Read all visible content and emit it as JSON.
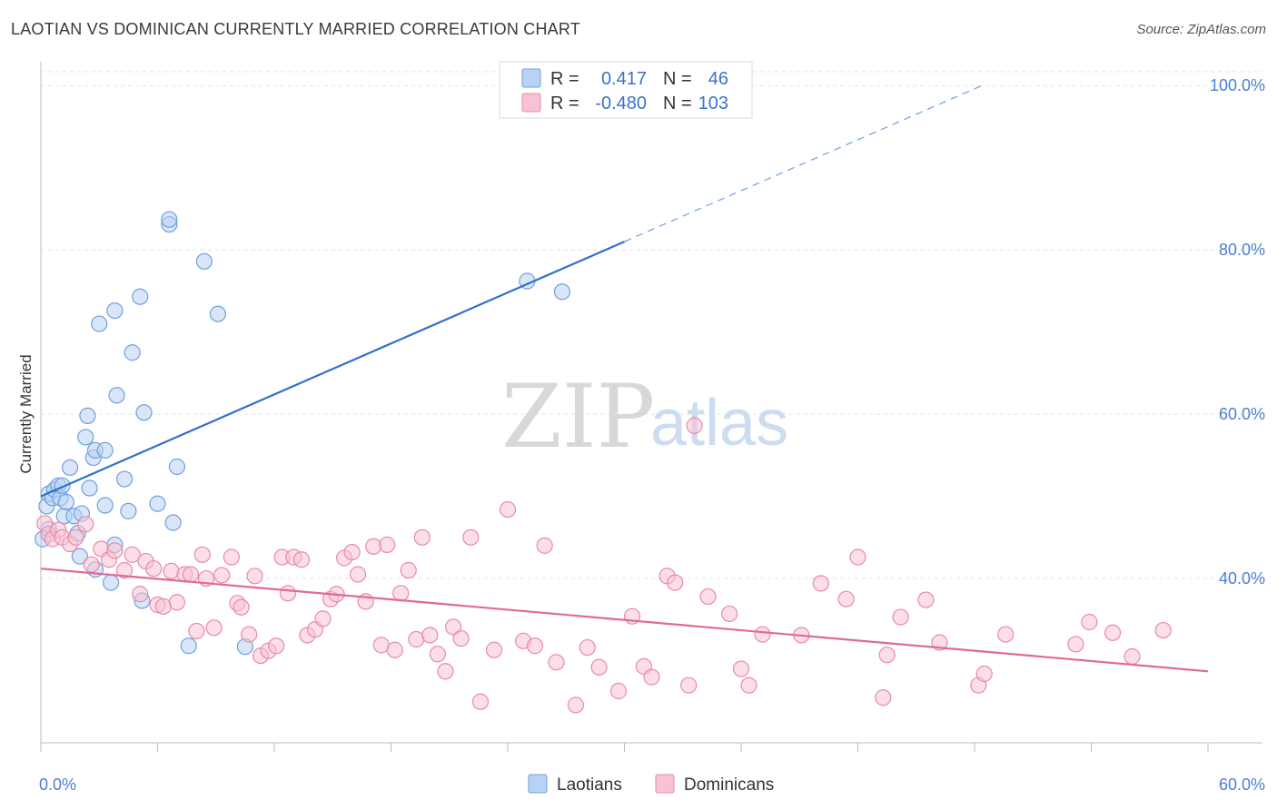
{
  "title": "LAOTIAN VS DOMINICAN CURRENTLY MARRIED CORRELATION CHART",
  "source": "Source: ZipAtlas.com",
  "watermark": {
    "part1": "ZIP",
    "part2": "atlas"
  },
  "legend": {
    "rows": [
      {
        "r_label": "R =",
        "r_value": "0.417",
        "n_label": "N =",
        "n_value": "46",
        "color": "#6fa0e0",
        "fill": "#b9d2f3"
      },
      {
        "r_label": "R =",
        "r_value": "-0.480",
        "n_label": "N =",
        "n_value": "103",
        "color": "#e98aa9",
        "fill": "#f7c3d3"
      }
    ]
  },
  "bottom_legend": [
    "Laotians",
    "Dominicans"
  ],
  "chart_data": {
    "type": "scatter",
    "title": "LAOTIAN VS DOMINICAN CURRENTLY MARRIED CORRELATION CHART",
    "xlabel": "",
    "ylabel": "Currently Married",
    "xlim": [
      0,
      60
    ],
    "ylim": [
      20,
      104
    ],
    "x_tick_labels": [
      "0.0%",
      "60.0%"
    ],
    "y_ticks": [
      40,
      60,
      80,
      100
    ],
    "y_tick_labels": [
      "40.0%",
      "60.0%",
      "80.0%",
      "100.0%"
    ],
    "grid": true,
    "legend_position": "top-center",
    "series": [
      {
        "name": "Laotians",
        "color": "#6fa0e0",
        "fill": "#b9d2f3",
        "trend": {
          "x0": 0,
          "y0": 50.0,
          "x1": 30,
          "y1": 81.0,
          "dash_x1": 48.5
        },
        "points": [
          [
            0.1,
            44.8
          ],
          [
            0.3,
            48.8
          ],
          [
            0.4,
            50.3
          ],
          [
            0.6,
            49.8
          ],
          [
            0.7,
            50.8
          ],
          [
            0.9,
            51.3
          ],
          [
            1.0,
            49.8
          ],
          [
            1.1,
            51.3
          ],
          [
            1.2,
            47.6
          ],
          [
            1.3,
            49.3
          ],
          [
            1.5,
            53.5
          ],
          [
            1.7,
            47.6
          ],
          [
            1.9,
            45.5
          ],
          [
            2.0,
            42.7
          ],
          [
            2.1,
            47.9
          ],
          [
            2.3,
            57.2
          ],
          [
            2.4,
            59.8
          ],
          [
            2.5,
            51.0
          ],
          [
            2.7,
            54.7
          ],
          [
            2.8,
            55.6
          ],
          [
            2.8,
            41.1
          ],
          [
            3.0,
            71.0
          ],
          [
            3.3,
            55.6
          ],
          [
            3.3,
            48.9
          ],
          [
            3.6,
            39.5
          ],
          [
            3.8,
            72.6
          ],
          [
            3.8,
            44.1
          ],
          [
            3.9,
            62.3
          ],
          [
            4.3,
            52.1
          ],
          [
            4.5,
            48.2
          ],
          [
            4.7,
            67.5
          ],
          [
            5.1,
            74.3
          ],
          [
            5.2,
            37.3
          ],
          [
            5.3,
            60.2
          ],
          [
            6.0,
            49.1
          ],
          [
            6.6,
            83.1
          ],
          [
            6.6,
            83.7
          ],
          [
            6.8,
            46.8
          ],
          [
            7.0,
            53.6
          ],
          [
            7.6,
            31.8
          ],
          [
            8.4,
            78.6
          ],
          [
            9.1,
            72.2
          ],
          [
            10.5,
            31.7
          ],
          [
            25.0,
            76.2
          ],
          [
            26.8,
            74.9
          ],
          [
            0.4,
            46.0
          ]
        ]
      },
      {
        "name": "Dominicans",
        "color": "#e98aa9",
        "fill": "#f7c3d3",
        "trend": {
          "x0": 0,
          "y0": 41.2,
          "x1": 60,
          "y1": 28.7
        },
        "points": [
          [
            0.2,
            46.7
          ],
          [
            0.4,
            45.4
          ],
          [
            0.6,
            44.8
          ],
          [
            0.9,
            45.9
          ],
          [
            1.1,
            45.0
          ],
          [
            1.5,
            44.2
          ],
          [
            1.8,
            45.0
          ],
          [
            2.3,
            46.6
          ],
          [
            2.6,
            41.7
          ],
          [
            3.1,
            43.6
          ],
          [
            3.5,
            42.3
          ],
          [
            3.8,
            43.4
          ],
          [
            4.3,
            41.0
          ],
          [
            4.7,
            42.9
          ],
          [
            5.1,
            38.1
          ],
          [
            5.4,
            42.1
          ],
          [
            5.8,
            41.2
          ],
          [
            6.0,
            36.8
          ],
          [
            6.3,
            36.6
          ],
          [
            6.7,
            40.9
          ],
          [
            7.0,
            37.1
          ],
          [
            7.4,
            40.5
          ],
          [
            7.7,
            40.5
          ],
          [
            8.0,
            33.6
          ],
          [
            8.3,
            42.9
          ],
          [
            8.5,
            40.0
          ],
          [
            8.9,
            34.0
          ],
          [
            9.3,
            40.4
          ],
          [
            9.8,
            42.6
          ],
          [
            10.1,
            37.0
          ],
          [
            10.3,
            36.5
          ],
          [
            10.7,
            33.2
          ],
          [
            11.0,
            40.3
          ],
          [
            11.3,
            30.6
          ],
          [
            11.7,
            31.2
          ],
          [
            12.1,
            31.8
          ],
          [
            12.4,
            42.6
          ],
          [
            12.7,
            38.2
          ],
          [
            13.0,
            42.6
          ],
          [
            13.4,
            42.3
          ],
          [
            13.7,
            33.1
          ],
          [
            14.1,
            33.8
          ],
          [
            14.5,
            35.1
          ],
          [
            14.9,
            37.5
          ],
          [
            15.2,
            38.1
          ],
          [
            15.6,
            42.5
          ],
          [
            16.0,
            43.2
          ],
          [
            16.3,
            40.5
          ],
          [
            16.7,
            37.2
          ],
          [
            17.1,
            43.9
          ],
          [
            17.5,
            31.9
          ],
          [
            17.8,
            44.1
          ],
          [
            18.2,
            31.3
          ],
          [
            18.5,
            38.2
          ],
          [
            18.9,
            41.0
          ],
          [
            19.3,
            32.6
          ],
          [
            19.6,
            45.0
          ],
          [
            20.0,
            33.1
          ],
          [
            20.4,
            30.8
          ],
          [
            20.8,
            28.7
          ],
          [
            21.2,
            34.1
          ],
          [
            21.6,
            32.7
          ],
          [
            22.1,
            45.0
          ],
          [
            22.6,
            25.0
          ],
          [
            23.3,
            31.3
          ],
          [
            24.0,
            48.4
          ],
          [
            24.8,
            32.4
          ],
          [
            25.4,
            31.8
          ],
          [
            25.9,
            44.0
          ],
          [
            26.5,
            29.8
          ],
          [
            27.5,
            24.6
          ],
          [
            28.1,
            31.6
          ],
          [
            28.7,
            29.2
          ],
          [
            29.7,
            26.3
          ],
          [
            30.4,
            35.4
          ],
          [
            31.0,
            29.3
          ],
          [
            31.4,
            28.0
          ],
          [
            32.2,
            40.3
          ],
          [
            32.6,
            39.5
          ],
          [
            33.3,
            27.0
          ],
          [
            33.6,
            58.6
          ],
          [
            34.3,
            37.8
          ],
          [
            35.4,
            35.7
          ],
          [
            36.0,
            29.0
          ],
          [
            36.4,
            27.0
          ],
          [
            37.1,
            33.2
          ],
          [
            39.1,
            33.1
          ],
          [
            40.1,
            39.4
          ],
          [
            41.4,
            37.5
          ],
          [
            42.0,
            42.6
          ],
          [
            43.3,
            25.5
          ],
          [
            43.5,
            30.7
          ],
          [
            44.2,
            35.3
          ],
          [
            45.5,
            37.4
          ],
          [
            46.2,
            32.2
          ],
          [
            48.2,
            27.0
          ],
          [
            48.5,
            28.4
          ],
          [
            49.6,
            33.2
          ],
          [
            53.2,
            32.0
          ],
          [
            53.9,
            34.7
          ],
          [
            55.1,
            33.4
          ],
          [
            56.1,
            30.5
          ],
          [
            57.7,
            33.7
          ]
        ]
      }
    ]
  }
}
